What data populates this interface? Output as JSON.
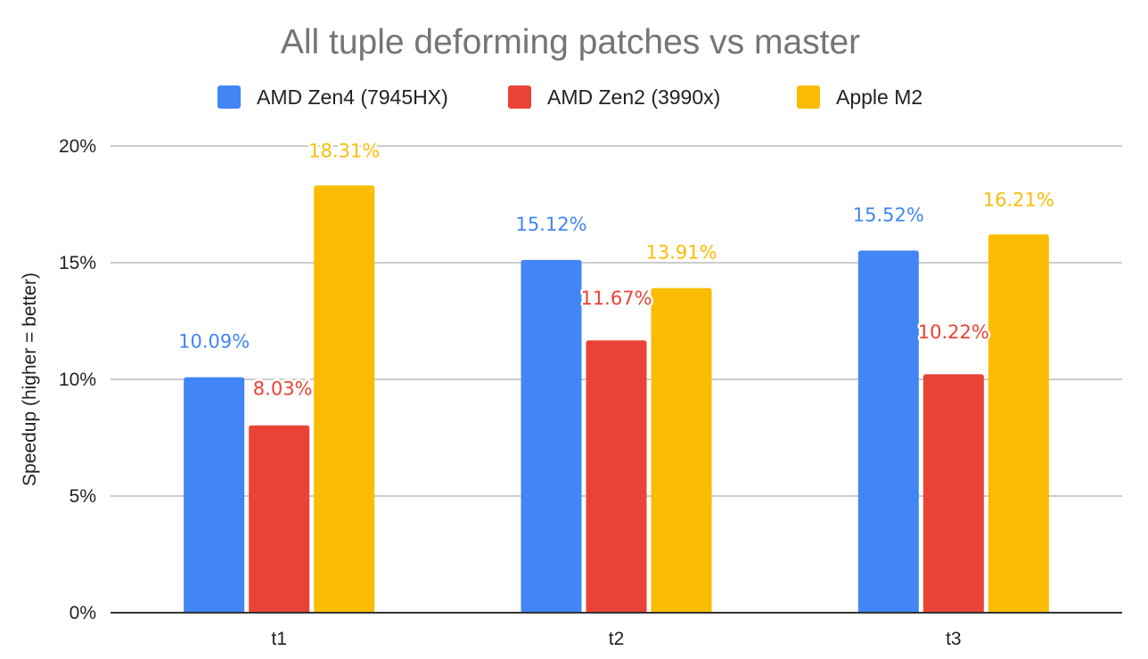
{
  "chart_data": {
    "type": "bar",
    "title": "All tuple deforming patches vs master",
    "xlabel": "",
    "ylabel": "Speedup (higher = better)",
    "categories": [
      "t1",
      "t2",
      "t3"
    ],
    "series": [
      {
        "name": "AMD Zen4 (7945HX)",
        "color": "#4285f4",
        "values": [
          10.09,
          15.12,
          15.52
        ],
        "labels": [
          "10.09%",
          "15.12%",
          "15.52%"
        ]
      },
      {
        "name": "AMD Zen2 (3990x)",
        "color": "#ea4335",
        "values": [
          8.03,
          11.67,
          10.22
        ],
        "labels": [
          "8.03%",
          "11.67%",
          "10.22%"
        ]
      },
      {
        "name": "Apple M2",
        "color": "#fbbc04",
        "values": [
          18.31,
          13.91,
          16.21
        ],
        "labels": [
          "18.31%",
          "13.91%",
          "16.21%"
        ]
      }
    ],
    "ylim": [
      0,
      20
    ],
    "yticks": [
      0,
      5,
      10,
      15,
      20
    ],
    "ytick_labels": [
      "0%",
      "5%",
      "10%",
      "15%",
      "20%"
    ],
    "grid": true,
    "legend_position": "top"
  }
}
